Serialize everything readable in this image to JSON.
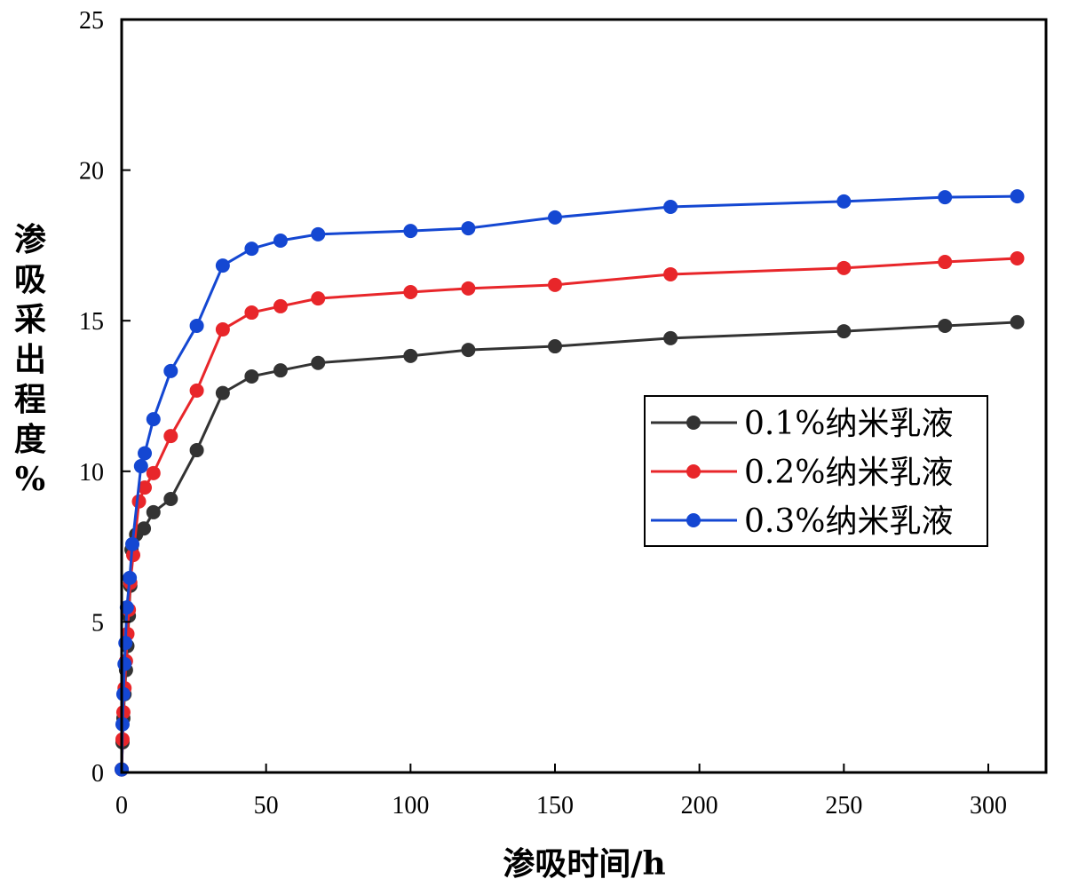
{
  "chart_data": {
    "type": "line",
    "title": "",
    "xlabel": "渗吸时间/h",
    "ylabel": "渗吸采出程度%",
    "xlim": [
      0,
      320
    ],
    "ylim": [
      0,
      25
    ],
    "xticks": [
      0,
      50,
      100,
      150,
      200,
      250,
      300
    ],
    "yticks": [
      0,
      5,
      10,
      15,
      20,
      25
    ],
    "grid": false,
    "legend_position": "right",
    "series": [
      {
        "name": "0.1%纳米乳液",
        "color": "#333333",
        "x": [
          0,
          0.3,
          0.6,
          1,
          1.5,
          2,
          2.5,
          3,
          3.4,
          5,
          7.7,
          11,
          17,
          26,
          35,
          45,
          55,
          68,
          100,
          120,
          150,
          190,
          250,
          285,
          310
        ],
        "y": [
          0.1,
          1.0,
          1.8,
          2.6,
          3.4,
          4.2,
          5.2,
          6.2,
          7.4,
          7.9,
          8.1,
          8.64,
          9.08,
          10.7,
          12.6,
          13.15,
          13.35,
          13.6,
          13.83,
          14.03,
          14.15,
          14.42,
          14.65,
          14.83,
          14.95
        ]
      },
      {
        "name": "0.2%纳米乳液",
        "color": "#e8262a",
        "x": [
          0,
          0.3,
          0.6,
          1,
          1.5,
          2,
          2.5,
          3,
          4,
          6,
          8,
          11,
          17,
          26,
          35,
          45,
          55,
          68,
          100,
          120,
          150,
          190,
          250,
          285,
          310
        ],
        "y": [
          0.1,
          1.1,
          2.0,
          2.8,
          3.7,
          4.6,
          5.4,
          6.3,
          7.22,
          9.0,
          9.46,
          9.94,
          11.17,
          12.68,
          14.71,
          15.27,
          15.48,
          15.74,
          15.95,
          16.07,
          16.19,
          16.54,
          16.75,
          16.95,
          17.07
        ]
      },
      {
        "name": "0.3%纳米乳液",
        "color": "#1447d2",
        "x": [
          0,
          0.3,
          0.6,
          1,
          1.3,
          1.8,
          2.8,
          3.7,
          6.7,
          8,
          11,
          17,
          26,
          35,
          45,
          55,
          68,
          100,
          120,
          150,
          190,
          250,
          285,
          310
        ],
        "y": [
          0.1,
          1.6,
          2.6,
          3.6,
          4.3,
          5.48,
          6.46,
          7.58,
          10.17,
          10.6,
          11.73,
          13.33,
          14.83,
          16.83,
          17.39,
          17.66,
          17.87,
          17.98,
          18.07,
          18.43,
          18.78,
          18.96,
          19.1,
          19.13
        ]
      }
    ]
  }
}
